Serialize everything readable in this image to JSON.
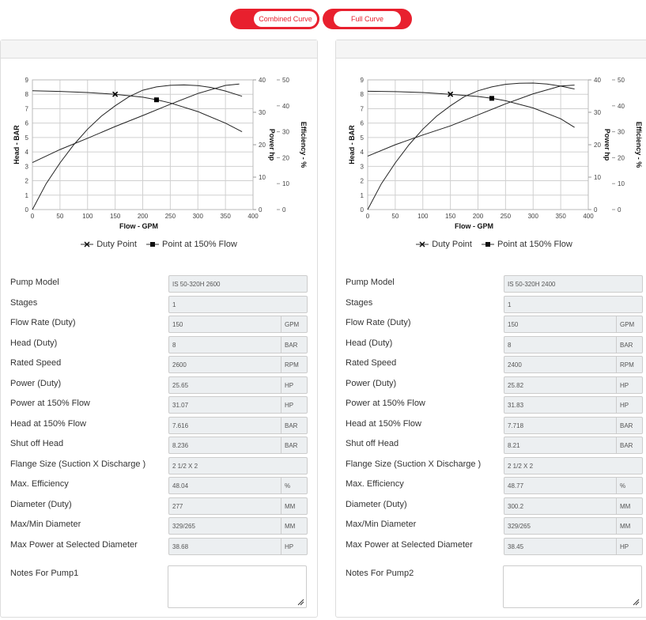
{
  "tabs": [
    {
      "label": "Combined Curve"
    },
    {
      "label": "Full Curve"
    }
  ],
  "legend": {
    "duty": "Duty Point",
    "p150": "Point at 150% Flow"
  },
  "axes": {
    "x": "Flow - GPM",
    "head": "Head - BAR",
    "power": "Power hp",
    "eff": "Efficiency - %"
  },
  "field_labels": {
    "model": "Pump Model",
    "stages": "Stages",
    "flow": "Flow Rate (Duty)",
    "head": "Head (Duty)",
    "speed": "Rated Speed",
    "power": "Power (Duty)",
    "power150": "Power at 150% Flow",
    "head150": "Head at 150% Flow",
    "shutoff": "Shut off Head",
    "flange": "Flange Size (Suction X Discharge )",
    "maxeff": "Max. Efficiency",
    "diameter": "Diameter (Duty)",
    "maxmin": "Max/Min Diameter",
    "maxpower": "Max Power at Selected Diameter"
  },
  "pumps": [
    {
      "notes_label": "Notes For Pump1",
      "model": "IS 50-320H 2600",
      "stages": "1",
      "flow": "150",
      "head": "8",
      "speed": "2600",
      "power": "25.65",
      "power150": "31.07",
      "head150": "7.616",
      "shutoff": "8.236",
      "flange": "2 1/2  X 2",
      "maxeff": "48.04",
      "diameter": "277",
      "maxmin": "329/265",
      "maxpower": "38.68",
      "units": {
        "flow": "GPM",
        "head": "BAR",
        "speed": "RPM",
        "power": "HP",
        "power150": "HP",
        "head150": "BAR",
        "shutoff": "BAR",
        "maxeff": "%",
        "diameter": "MM",
        "maxmin": "MM",
        "maxpower": "HP"
      }
    },
    {
      "notes_label": "Notes For Pump2",
      "model": "IS 50-320H 2400",
      "stages": "1",
      "flow": "150",
      "head": "8",
      "speed": "2400",
      "power": "25.82",
      "power150": "31.83",
      "head150": "7.718",
      "shutoff": "8.21",
      "flange": "2 1/2  X 2",
      "maxeff": "48.77",
      "diameter": "300.2",
      "maxmin": "329/265",
      "maxpower": "38.45",
      "units": {
        "flow": "GPM",
        "head": "BAR",
        "speed": "RPM",
        "power": "HP",
        "power150": "HP",
        "head150": "BAR",
        "shutoff": "BAR",
        "maxeff": "%",
        "diameter": "MM",
        "maxmin": "MM",
        "maxpower": "HP"
      }
    }
  ],
  "chart_data": [
    {
      "type": "line",
      "xlabel": "Flow - GPM",
      "xlim": [
        0,
        400
      ],
      "xticks": [
        0,
        50,
        100,
        150,
        200,
        250,
        300,
        350,
        400
      ],
      "axes": [
        {
          "label": "Head - BAR",
          "lim": [
            0,
            9
          ],
          "ticks": [
            0,
            1,
            2,
            3,
            4,
            5,
            6,
            7,
            8,
            9
          ]
        },
        {
          "label": "Power hp",
          "lim": [
            0,
            40
          ],
          "ticks": [
            0,
            10,
            20,
            30,
            40
          ]
        },
        {
          "label": "Efficiency - %",
          "lim": [
            0,
            50
          ],
          "ticks": [
            0,
            10,
            20,
            30,
            40,
            50
          ]
        }
      ],
      "series": [
        {
          "axis": 0,
          "x": [
            0,
            50,
            100,
            150,
            200,
            225,
            250,
            300,
            350,
            380
          ],
          "y": [
            8.24,
            8.2,
            8.12,
            8.0,
            7.8,
            7.62,
            7.4,
            6.8,
            6.0,
            5.4
          ]
        },
        {
          "axis": 1,
          "x": [
            0,
            50,
            100,
            150,
            200,
            250,
            300,
            350,
            375
          ],
          "y": [
            14.5,
            18.5,
            22,
            25.6,
            29,
            32.5,
            35.8,
            38.3,
            38.7
          ]
        },
        {
          "axis": 2,
          "x": [
            0,
            25,
            50,
            75,
            100,
            125,
            150,
            175,
            200,
            225,
            250,
            275,
            300,
            325,
            350,
            380
          ],
          "y": [
            0,
            10,
            18,
            25,
            31,
            36,
            40,
            43.5,
            46,
            47.3,
            47.9,
            48.04,
            47.8,
            47,
            45.7,
            43.7
          ]
        }
      ],
      "markers": [
        {
          "name": "Duty Point",
          "x": 150,
          "y": 8
        },
        {
          "name": "Point at 150% Flow",
          "x": 225,
          "y": 7.616
        }
      ]
    },
    {
      "type": "line",
      "xlabel": "Flow - GPM",
      "xlim": [
        0,
        400
      ],
      "xticks": [
        0,
        50,
        100,
        150,
        200,
        250,
        300,
        350,
        400
      ],
      "axes": [
        {
          "label": "Head - BAR",
          "lim": [
            0,
            9
          ],
          "ticks": [
            0,
            1,
            2,
            3,
            4,
            5,
            6,
            7,
            8,
            9
          ]
        },
        {
          "label": "Power hp",
          "lim": [
            0,
            40
          ],
          "ticks": [
            0,
            10,
            20,
            30,
            40
          ]
        },
        {
          "label": "Efficiency - %",
          "lim": [
            0,
            50
          ],
          "ticks": [
            0,
            10,
            20,
            30,
            40,
            50
          ]
        }
      ],
      "series": [
        {
          "axis": 0,
          "x": [
            0,
            50,
            100,
            150,
            200,
            225,
            250,
            300,
            350,
            375
          ],
          "y": [
            8.21,
            8.18,
            8.12,
            8.0,
            7.85,
            7.72,
            7.55,
            7.05,
            6.3,
            5.7
          ]
        },
        {
          "axis": 1,
          "x": [
            0,
            50,
            100,
            150,
            200,
            250,
            300,
            350,
            375
          ],
          "y": [
            16.5,
            20,
            23,
            25.8,
            29.2,
            32.6,
            35.7,
            38.1,
            38.4
          ]
        },
        {
          "axis": 2,
          "x": [
            0,
            25,
            50,
            75,
            100,
            125,
            150,
            175,
            200,
            225,
            250,
            275,
            300,
            325,
            350,
            375
          ],
          "y": [
            0,
            10,
            18,
            25,
            31,
            36,
            40,
            43.5,
            45.8,
            47.3,
            48.3,
            48.7,
            48.77,
            48.4,
            47.6,
            46.5
          ]
        }
      ],
      "markers": [
        {
          "name": "Duty Point",
          "x": 150,
          "y": 8
        },
        {
          "name": "Point at 150% Flow",
          "x": 225,
          "y": 7.718
        }
      ]
    }
  ]
}
